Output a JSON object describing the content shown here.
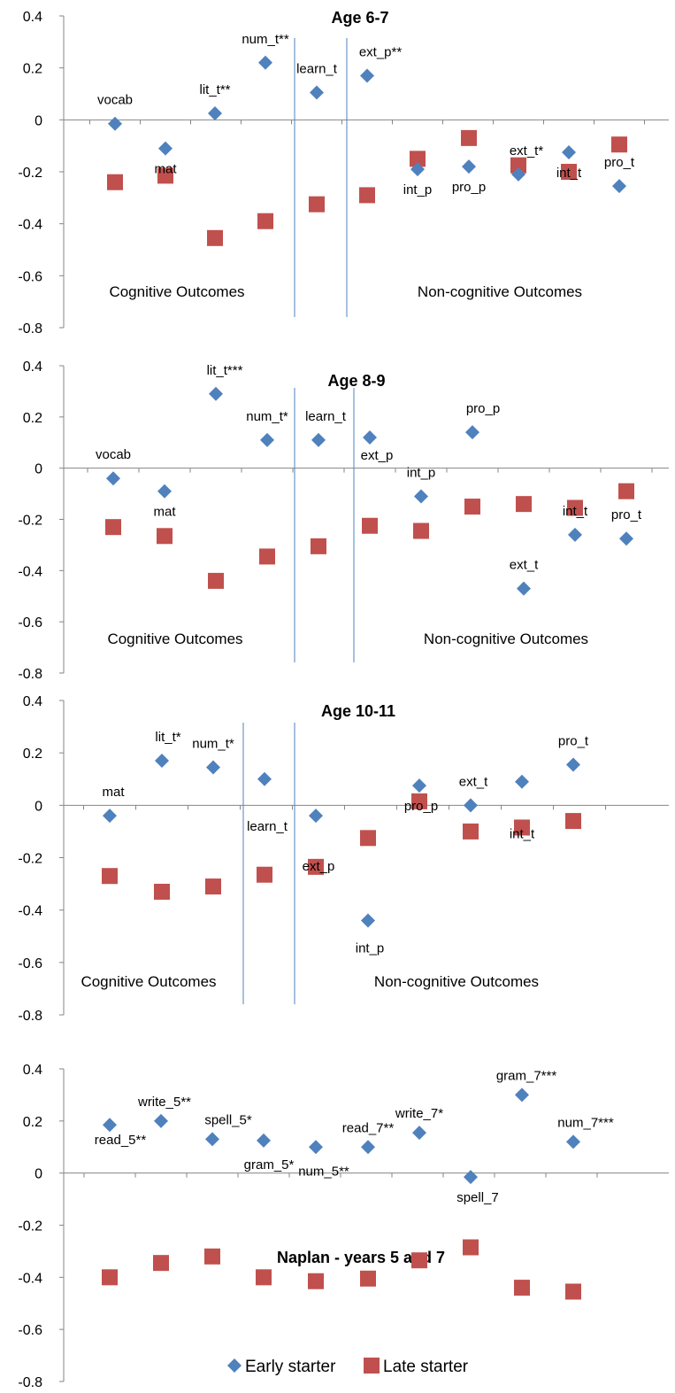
{
  "chart_data": [
    {
      "type": "scatter",
      "title": "Age 6-7",
      "ylim": [
        -0.8,
        0.4
      ],
      "yticks": [
        "0.4",
        "0.2",
        "0",
        "-0.2",
        "-0.4",
        "-0.6",
        "-0.8"
      ],
      "section_labels": [
        "Cognitive Outcomes",
        "Non-cognitive Outcomes"
      ],
      "x": [
        1,
        2,
        3,
        4,
        5,
        6,
        7,
        8,
        9,
        10,
        11
      ],
      "point_labels": [
        "vocab",
        "mat",
        "lit_t**",
        "num_t**",
        "learn_t",
        "ext_p**",
        "int_p",
        "pro_p",
        "ext_t*",
        "int_t",
        "pro_t"
      ],
      "series": [
        {
          "name": "Early starter",
          "values": [
            -0.015,
            -0.11,
            0.025,
            0.22,
            0.105,
            0.17,
            -0.19,
            -0.18,
            -0.21,
            -0.125,
            -0.255
          ]
        },
        {
          "name": "Late starter",
          "values": [
            -0.24,
            -0.215,
            -0.455,
            -0.39,
            -0.325,
            -0.29,
            -0.15,
            -0.07,
            -0.175,
            -0.2,
            -0.095
          ]
        }
      ]
    },
    {
      "type": "scatter",
      "title": "Age 8-9",
      "ylim": [
        -0.8,
        0.4
      ],
      "yticks": [
        "0.4",
        "0.2",
        "0",
        "-0.2",
        "-0.4",
        "-0.6",
        "-0.8"
      ],
      "section_labels": [
        "Cognitive Outcomes",
        "Non-cognitive Outcomes"
      ],
      "x": [
        1,
        2,
        3,
        4,
        5,
        6,
        7,
        8,
        9,
        10,
        11
      ],
      "point_labels": [
        "vocab",
        "mat",
        "lit_t***",
        "num_t*",
        "learn_t",
        "ext_p",
        "int_p",
        "pro_p",
        "ext_t",
        "int_t",
        "pro_t"
      ],
      "series": [
        {
          "name": "Early starter",
          "values": [
            -0.04,
            -0.09,
            0.29,
            0.11,
            0.11,
            0.12,
            -0.11,
            0.14,
            -0.47,
            -0.26,
            -0.275
          ]
        },
        {
          "name": "Late starter",
          "values": [
            -0.23,
            -0.265,
            -0.44,
            -0.345,
            -0.305,
            -0.225,
            -0.245,
            -0.15,
            -0.14,
            -0.155,
            -0.09
          ]
        }
      ]
    },
    {
      "type": "scatter",
      "title": "Age 10-11",
      "ylim": [
        -0.8,
        0.4
      ],
      "yticks": [
        "0.4",
        "0.2",
        "0",
        "-0.2",
        "-0.4",
        "-0.6",
        "-0.8"
      ],
      "section_labels": [
        "Cognitive Outcomes",
        "Non-cognitive Outcomes"
      ],
      "x": [
        1,
        2,
        3,
        4,
        5,
        6,
        7,
        8,
        9,
        10
      ],
      "point_labels": [
        "mat",
        "lit_t*",
        "num_t*",
        "learn_t",
        "ext_p",
        "int_p",
        "pro_p",
        "ext_t",
        "int_t",
        "pro_t"
      ],
      "series": [
        {
          "name": "Early starter",
          "values": [
            -0.04,
            0.17,
            0.145,
            0.1,
            -0.04,
            -0.44,
            0.075,
            0.0,
            0.09,
            0.155
          ]
        },
        {
          "name": "Late starter",
          "values": [
            -0.27,
            -0.33,
            -0.31,
            -0.265,
            -0.235,
            -0.125,
            0.015,
            -0.1,
            -0.085,
            -0.06
          ]
        }
      ]
    },
    {
      "type": "scatter",
      "title": "Naplan - years 5 and 7",
      "ylim": [
        -0.8,
        0.4
      ],
      "yticks": [
        "0.4",
        "0.2",
        "0",
        "-0.2",
        "-0.4",
        "-0.6",
        "-0.8"
      ],
      "x": [
        1,
        2,
        3,
        4,
        5,
        6,
        7,
        8,
        9,
        10
      ],
      "point_labels": [
        "read_5**",
        "write_5**",
        "spell_5*",
        "gram_5*",
        "num_5**",
        "read_7**",
        "write_7*",
        "spell_7",
        "gram_7***",
        "num_7***"
      ],
      "series": [
        {
          "name": "Early starter",
          "values": [
            0.185,
            0.2,
            0.13,
            0.125,
            0.1,
            0.1,
            0.155,
            -0.015,
            0.3,
            0.12
          ]
        },
        {
          "name": "Late starter",
          "values": [
            -0.4,
            -0.345,
            -0.32,
            -0.4,
            -0.415,
            -0.405,
            -0.335,
            -0.285,
            -0.44,
            -0.455
          ]
        }
      ],
      "legend": {
        "position": "bottom",
        "entries": [
          "Early starter",
          "Late starter"
        ]
      }
    }
  ],
  "colors": {
    "early": "#4F81BD",
    "late": "#C0504D",
    "axis": "#868686",
    "separator": "#4F81BD"
  }
}
